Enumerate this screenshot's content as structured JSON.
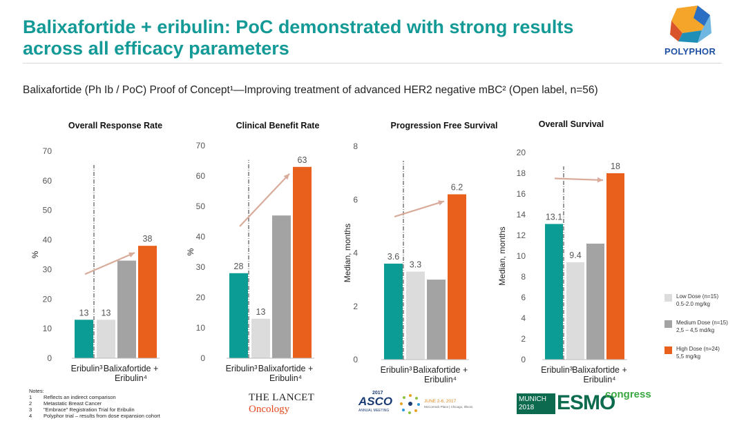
{
  "header": {
    "title_line1": "Balixafortide + eribulin: PoC demonstrated with strong results",
    "title_line2": "across all efficacy parameters",
    "logo_text": "POLYPHOR",
    "subtitle": "Balixafortide (Ph Ib / PoC) Proof of Concept¹—Improving treatment of advanced HER2 negative mBC² (Open label, n=56)"
  },
  "colors": {
    "teal": "#0c9c96",
    "light_gray": "#dcdcdc",
    "medium_gray": "#a3a3a3",
    "orange": "#e8601c",
    "title": "#149a96",
    "arrow": "#d8ab9b"
  },
  "chart_data": [
    {
      "type": "bar",
      "title": "Overall Response Rate",
      "ylabel": "%",
      "ylim": [
        0,
        70
      ],
      "yticks": [
        0,
        10,
        20,
        30,
        40,
        50,
        60,
        70
      ],
      "group_labels": [
        "Eribulin³",
        "Balixafortide +",
        "Eribulin⁴"
      ],
      "bars": [
        {
          "series": "Eribulin",
          "value": 13,
          "label": "13"
        },
        {
          "series": "Low Dose",
          "value": 13,
          "label": "13"
        },
        {
          "series": "Medium Dose",
          "value": 33,
          "label": ""
        },
        {
          "series": "High Dose",
          "value": 38,
          "label": "38"
        }
      ],
      "source": "THE LANCET Oncology"
    },
    {
      "type": "bar",
      "title": "Clinical Benefit Rate",
      "ylabel": "%",
      "ylim": [
        0,
        70
      ],
      "yticks": [
        0,
        10,
        20,
        30,
        40,
        50,
        60,
        70
      ],
      "group_labels": [
        "Eribulin³",
        "Balixafortide +",
        "Eribulin⁴"
      ],
      "bars": [
        {
          "series": "Eribulin",
          "value": 28,
          "label": "28"
        },
        {
          "series": "Low Dose",
          "value": 13,
          "label": "13"
        },
        {
          "series": "Medium Dose",
          "value": 47,
          "label": ""
        },
        {
          "series": "High Dose",
          "value": 63,
          "label": "63"
        }
      ],
      "source": "THE LANCET Oncology"
    },
    {
      "type": "bar",
      "title": "Progression Free Survival",
      "ylabel": "Median, months",
      "ylim": [
        0,
        8
      ],
      "yticks": [
        0,
        2,
        4,
        6,
        8
      ],
      "group_labels": [
        "Eribulin³",
        "Balixafortide +",
        "Eribulin⁴"
      ],
      "bars": [
        {
          "series": "Eribulin",
          "value": 3.6,
          "label": "3.6"
        },
        {
          "series": "Low Dose",
          "value": 3.3,
          "label": "3.3"
        },
        {
          "series": "Medium Dose",
          "value": 3.0,
          "label": ""
        },
        {
          "series": "High Dose",
          "value": 6.2,
          "label": "6.2"
        }
      ],
      "source": "ASCO 2017"
    },
    {
      "type": "bar",
      "title": "Overall Survival",
      "ylabel": "Median, months",
      "ylim": [
        0,
        20
      ],
      "yticks": [
        0,
        2,
        4,
        6,
        8,
        10,
        12,
        14,
        16,
        18,
        20
      ],
      "group_labels": [
        "Eribulin³",
        "Balixafortide +",
        "Eribulin⁴"
      ],
      "bars": [
        {
          "series": "Eribulin",
          "value": 13.1,
          "label": "13.1"
        },
        {
          "series": "Low Dose",
          "value": 9.4,
          "label": "9.4"
        },
        {
          "series": "Medium Dose",
          "value": 11.2,
          "label": ""
        },
        {
          "series": "High Dose",
          "value": 18,
          "label": "18"
        }
      ],
      "source": "ESMO congress 2018"
    }
  ],
  "legend": [
    {
      "name": "Low Dose  (n=15)",
      "detail": "0.5-2.0 mg/kg",
      "color": "#dcdcdc"
    },
    {
      "name": "Medium Dose  (n=15)",
      "detail": "2,5 – 4,5 md/kg",
      "color": "#a3a3a3"
    },
    {
      "name": "High Dose    (n=24)",
      "detail": "5,5 mg/kg",
      "color": "#e8601c"
    }
  ],
  "notes": {
    "heading": "Notes:",
    "items": [
      {
        "n": "1",
        "text": "Reflects an indirect comparison"
      },
      {
        "n": "2",
        "text": "Metastatic Breast Cancer"
      },
      {
        "n": "3",
        "text": "\"Embrace\" Registration Trial for Eribulin"
      },
      {
        "n": "4",
        "text": "Polyphor trial – results from dose expansion cohort"
      }
    ]
  },
  "sources": {
    "lancet_line1": "THE LANCET",
    "lancet_line2": "Oncology",
    "asco_word": "ASCO",
    "asco_year": "2017",
    "asco_meeting": "ANNUAL MEETING",
    "asco_date": "JUNE 2-6, 2017",
    "asco_place": "McCormick Place | Chicago, Illinois",
    "esmo_city": "MUNICH",
    "esmo_year": "2018",
    "esmo_word": "ESMO",
    "esmo_congress": "congress"
  }
}
